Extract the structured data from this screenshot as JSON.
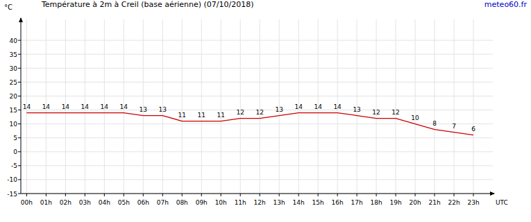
{
  "chart_data": {
    "type": "line",
    "title": "Température à 2m à Creil (base aérienne) (07/10/2018)",
    "source": "meteo60.fr",
    "y_label": "°C",
    "x_label": "UTC",
    "x": [
      0,
      1,
      2,
      3,
      4,
      5,
      6,
      7,
      8,
      9,
      10,
      11,
      12,
      13,
      14,
      15,
      16,
      17,
      18,
      19,
      20,
      21,
      22,
      23
    ],
    "values": [
      14,
      14,
      14,
      14,
      14,
      14,
      13,
      13,
      11,
      11,
      11,
      12,
      12,
      13,
      14,
      14,
      14,
      13,
      12,
      12,
      10,
      8,
      7,
      6
    ],
    "color": "#cc0000",
    "xlim": [
      -0.3,
      24
    ],
    "ylim": [
      -15,
      47.5
    ],
    "xticks": [
      {
        "value": 0,
        "label": "00h"
      },
      {
        "value": 1,
        "label": "01h"
      },
      {
        "value": 2,
        "label": "02h"
      },
      {
        "value": 3,
        "label": "03h"
      },
      {
        "value": 4,
        "label": "04h"
      },
      {
        "value": 5,
        "label": "05h"
      },
      {
        "value": 6,
        "label": "06h"
      },
      {
        "value": 7,
        "label": "07h"
      },
      {
        "value": 8,
        "label": "08h"
      },
      {
        "value": 9,
        "label": "09h"
      },
      {
        "value": 10,
        "label": "10h"
      },
      {
        "value": 11,
        "label": "11h"
      },
      {
        "value": 12,
        "label": "12h"
      },
      {
        "value": 13,
        "label": "13h"
      },
      {
        "value": 14,
        "label": "14h"
      },
      {
        "value": 15,
        "label": "15h"
      },
      {
        "value": 16,
        "label": "16h"
      },
      {
        "value": 17,
        "label": "17h"
      },
      {
        "value": 18,
        "label": "18h"
      },
      {
        "value": 19,
        "label": "19h"
      },
      {
        "value": 20,
        "label": "20h"
      },
      {
        "value": 21,
        "label": "21h"
      },
      {
        "value": 22,
        "label": "22h"
      },
      {
        "value": 23,
        "label": "23h"
      }
    ],
    "yticks": [
      -15,
      -10,
      -5,
      0,
      5,
      10,
      15,
      20,
      25,
      30,
      35,
      40
    ],
    "grid": true,
    "data_labels": true
  }
}
